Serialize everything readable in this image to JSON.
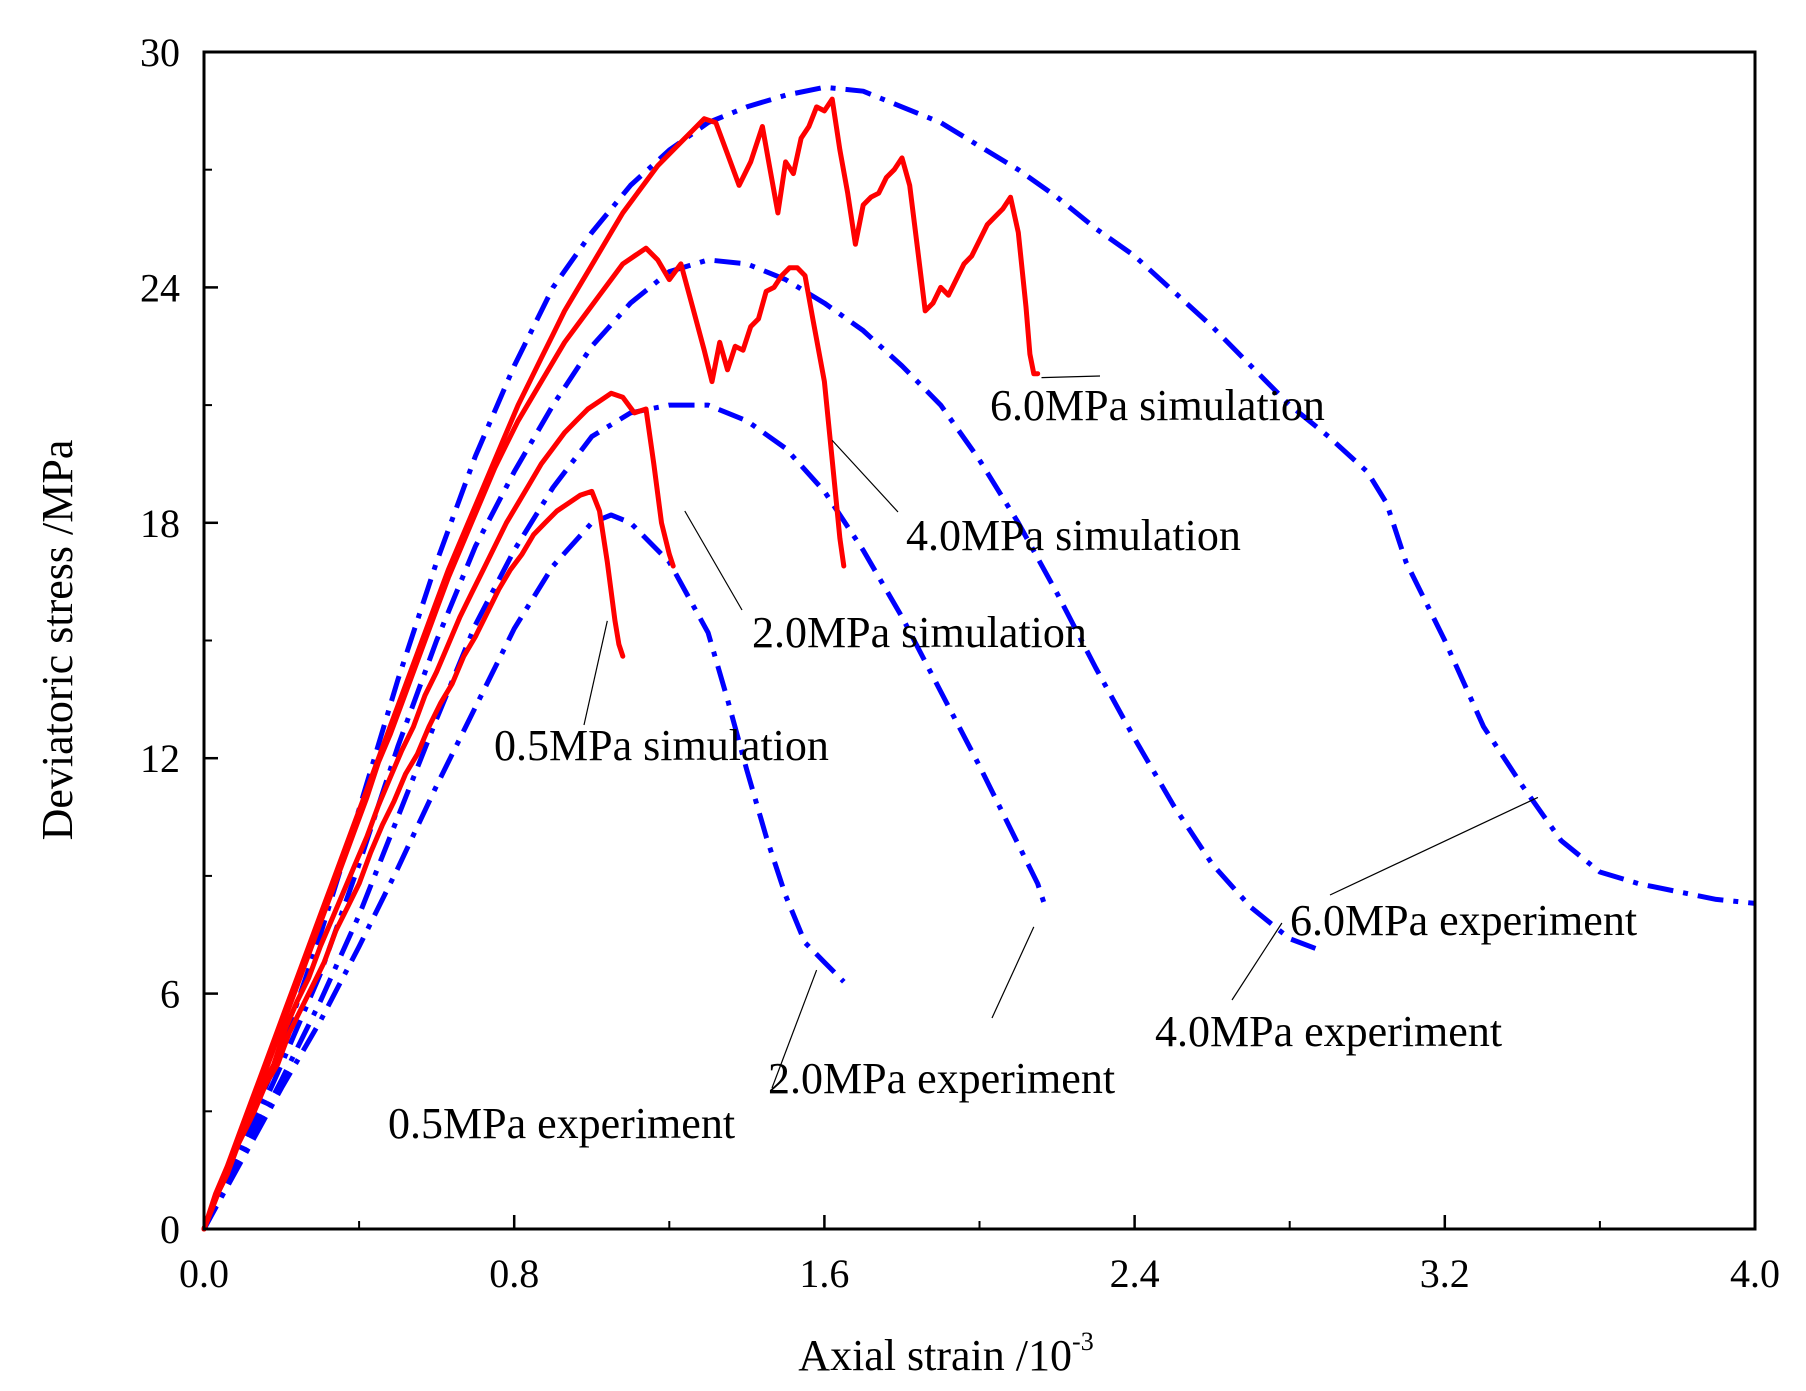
{
  "chart_data": {
    "type": "line",
    "title": "",
    "xlabel": "Axial strain /10",
    "xlabel_sup": "-3",
    "ylabel": "Deviatoric stress /MPa",
    "xlim": [
      0,
      4.0
    ],
    "ylim": [
      0,
      30
    ],
    "x_ticks": [
      "0.0",
      "0.8",
      "1.6",
      "2.4",
      "3.2",
      "4.0"
    ],
    "y_ticks": [
      "0",
      "6",
      "12",
      "18",
      "24",
      "30"
    ],
    "x_tick_values": [
      0,
      0.8,
      1.6,
      2.4,
      3.2,
      4.0
    ],
    "y_tick_values": [
      0,
      6,
      12,
      18,
      24,
      30
    ],
    "colors": {
      "simulation": "#ff0000",
      "experiment": "#0000ff"
    },
    "series": [
      {
        "name": "0.5MPa experiment",
        "kind": "experiment",
        "x": [
          0.0,
          0.1,
          0.2,
          0.3,
          0.4,
          0.5,
          0.6,
          0.7,
          0.8,
          0.9,
          1.0,
          1.05,
          1.1,
          1.2,
          1.3,
          1.35,
          1.4,
          1.45,
          1.5,
          1.55,
          1.6,
          1.65
        ],
        "y": [
          0.0,
          1.8,
          3.6,
          5.3,
          7.2,
          9.2,
          11.3,
          13.3,
          15.3,
          16.9,
          18.0,
          18.2,
          18.0,
          17.0,
          15.2,
          13.5,
          11.7,
          10.0,
          8.5,
          7.3,
          6.8,
          6.3
        ]
      },
      {
        "name": "2.0MPa experiment",
        "kind": "experiment",
        "x": [
          0.0,
          0.1,
          0.2,
          0.3,
          0.4,
          0.5,
          0.6,
          0.7,
          0.8,
          0.9,
          1.0,
          1.1,
          1.2,
          1.3,
          1.4,
          1.5,
          1.6,
          1.7,
          1.8,
          1.9,
          2.0,
          2.1,
          2.15,
          2.17
        ],
        "y": [
          0.0,
          1.9,
          3.8,
          5.8,
          8.0,
          10.5,
          13.0,
          15.4,
          17.3,
          18.9,
          20.2,
          20.8,
          21.0,
          21.0,
          20.6,
          19.9,
          18.8,
          17.3,
          15.6,
          13.7,
          11.8,
          9.8,
          8.8,
          8.2
        ]
      },
      {
        "name": "4.0MPa experiment",
        "kind": "experiment",
        "x": [
          0.0,
          0.1,
          0.2,
          0.3,
          0.4,
          0.5,
          0.6,
          0.7,
          0.8,
          0.9,
          1.0,
          1.1,
          1.2,
          1.3,
          1.4,
          1.5,
          1.6,
          1.7,
          1.8,
          1.9,
          2.0,
          2.1,
          2.2,
          2.3,
          2.4,
          2.5,
          2.6,
          2.7,
          2.8,
          2.88
        ],
        "y": [
          0.0,
          2.0,
          4.2,
          6.5,
          9.3,
          12.3,
          15.0,
          17.4,
          19.3,
          21.0,
          22.5,
          23.6,
          24.4,
          24.7,
          24.6,
          24.2,
          23.6,
          22.9,
          22.0,
          21.0,
          19.6,
          18.0,
          16.2,
          14.3,
          12.5,
          10.8,
          9.3,
          8.2,
          7.4,
          7.1
        ]
      },
      {
        "name": "6.0MPa experiment",
        "kind": "experiment",
        "x": [
          0.0,
          0.1,
          0.2,
          0.3,
          0.4,
          0.5,
          0.6,
          0.7,
          0.8,
          0.9,
          1.0,
          1.1,
          1.2,
          1.3,
          1.4,
          1.5,
          1.6,
          1.7,
          1.8,
          1.9,
          2.0,
          2.1,
          2.2,
          2.3,
          2.4,
          2.5,
          2.6,
          2.7,
          2.8,
          2.9,
          3.0,
          3.05,
          3.1,
          3.2,
          3.3,
          3.4,
          3.5,
          3.6,
          3.7,
          3.8,
          3.9,
          4.0
        ],
        "y": [
          0.0,
          2.2,
          4.6,
          7.5,
          10.7,
          14.0,
          17.0,
          19.7,
          22.0,
          24.0,
          25.4,
          26.6,
          27.5,
          28.2,
          28.6,
          28.9,
          29.1,
          29.0,
          28.6,
          28.2,
          27.6,
          27.0,
          26.3,
          25.5,
          24.8,
          23.9,
          23.0,
          22.0,
          21.0,
          20.2,
          19.3,
          18.5,
          17.0,
          15.0,
          12.8,
          11.3,
          9.9,
          9.1,
          8.8,
          8.6,
          8.4,
          8.3
        ]
      },
      {
        "name": "0.5MPa simulation",
        "kind": "simulation",
        "x": [
          0.0,
          0.02,
          0.04,
          0.06,
          0.08,
          0.1,
          0.13,
          0.16,
          0.19,
          0.22,
          0.25,
          0.28,
          0.31,
          0.34,
          0.37,
          0.4,
          0.43,
          0.46,
          0.49,
          0.52,
          0.55,
          0.58,
          0.61,
          0.64,
          0.67,
          0.7,
          0.73,
          0.76,
          0.79,
          0.82,
          0.85,
          0.88,
          0.91,
          0.94,
          0.97,
          1.0,
          1.02,
          1.04,
          1.06,
          1.07,
          1.08
        ],
        "y": [
          0.0,
          0.5,
          1.0,
          1.4,
          2.0,
          2.4,
          3.0,
          3.7,
          4.2,
          5.0,
          5.6,
          6.2,
          6.8,
          7.6,
          8.2,
          8.8,
          9.6,
          10.3,
          10.9,
          11.6,
          12.1,
          12.8,
          13.4,
          13.9,
          14.6,
          15.1,
          15.7,
          16.3,
          16.8,
          17.2,
          17.7,
          18.0,
          18.3,
          18.5,
          18.7,
          18.8,
          18.3,
          17.0,
          15.5,
          14.9,
          14.6
        ]
      },
      {
        "name": "2.0MPa simulation",
        "kind": "simulation",
        "x": [
          0.0,
          0.03,
          0.06,
          0.09,
          0.12,
          0.15,
          0.18,
          0.21,
          0.24,
          0.27,
          0.3,
          0.33,
          0.36,
          0.39,
          0.42,
          0.45,
          0.48,
          0.51,
          0.54,
          0.57,
          0.6,
          0.63,
          0.66,
          0.69,
          0.72,
          0.75,
          0.78,
          0.81,
          0.84,
          0.87,
          0.9,
          0.93,
          0.96,
          0.99,
          1.02,
          1.05,
          1.08,
          1.11,
          1.14,
          1.16,
          1.18,
          1.2,
          1.21
        ],
        "y": [
          0.0,
          0.8,
          1.4,
          2.2,
          2.8,
          3.6,
          4.2,
          5.1,
          5.8,
          6.4,
          7.2,
          7.9,
          8.6,
          9.3,
          10.0,
          10.8,
          11.5,
          12.2,
          12.8,
          13.6,
          14.2,
          14.9,
          15.6,
          16.2,
          16.8,
          17.4,
          18.0,
          18.5,
          19.0,
          19.5,
          19.9,
          20.3,
          20.6,
          20.9,
          21.1,
          21.3,
          21.2,
          20.8,
          20.9,
          19.5,
          18.0,
          17.2,
          16.9
        ]
      },
      {
        "name": "4.0MPa simulation",
        "kind": "simulation",
        "x": [
          0.0,
          0.03,
          0.06,
          0.09,
          0.12,
          0.15,
          0.18,
          0.21,
          0.24,
          0.27,
          0.3,
          0.33,
          0.36,
          0.39,
          0.42,
          0.45,
          0.48,
          0.51,
          0.54,
          0.57,
          0.6,
          0.63,
          0.66,
          0.69,
          0.72,
          0.75,
          0.78,
          0.81,
          0.84,
          0.87,
          0.9,
          0.93,
          0.96,
          0.99,
          1.02,
          1.05,
          1.08,
          1.11,
          1.14,
          1.17,
          1.2,
          1.23,
          1.26,
          1.29,
          1.31,
          1.33,
          1.35,
          1.37,
          1.39,
          1.41,
          1.43,
          1.45,
          1.47,
          1.49,
          1.51,
          1.53,
          1.55,
          1.57,
          1.6,
          1.62,
          1.64,
          1.65
        ],
        "y": [
          0.0,
          0.8,
          1.5,
          2.3,
          3.0,
          3.8,
          4.6,
          5.4,
          6.2,
          7.0,
          7.8,
          8.6,
          9.4,
          10.2,
          11.0,
          11.9,
          12.6,
          13.4,
          14.2,
          15.0,
          15.8,
          16.6,
          17.3,
          18.0,
          18.7,
          19.4,
          20.0,
          20.6,
          21.1,
          21.6,
          22.1,
          22.6,
          23.0,
          23.4,
          23.8,
          24.2,
          24.6,
          24.8,
          25.0,
          24.7,
          24.2,
          24.6,
          23.5,
          22.4,
          21.6,
          22.6,
          21.9,
          22.5,
          22.4,
          23.0,
          23.2,
          23.9,
          24.0,
          24.3,
          24.5,
          24.5,
          24.3,
          23.2,
          21.6,
          19.6,
          17.6,
          16.9
        ]
      },
      {
        "name": "6.0MPa simulation",
        "kind": "simulation",
        "x": [
          0.0,
          0.03,
          0.06,
          0.09,
          0.12,
          0.15,
          0.18,
          0.21,
          0.24,
          0.27,
          0.3,
          0.33,
          0.36,
          0.39,
          0.42,
          0.45,
          0.48,
          0.51,
          0.54,
          0.57,
          0.6,
          0.63,
          0.66,
          0.69,
          0.72,
          0.75,
          0.78,
          0.81,
          0.84,
          0.87,
          0.9,
          0.93,
          0.96,
          0.99,
          1.02,
          1.05,
          1.08,
          1.11,
          1.14,
          1.17,
          1.2,
          1.23,
          1.26,
          1.29,
          1.32,
          1.35,
          1.38,
          1.41,
          1.44,
          1.46,
          1.48,
          1.5,
          1.52,
          1.54,
          1.56,
          1.58,
          1.6,
          1.62,
          1.64,
          1.66,
          1.68,
          1.7,
          1.72,
          1.74,
          1.76,
          1.78,
          1.8,
          1.82,
          1.84,
          1.86,
          1.88,
          1.9,
          1.92,
          1.94,
          1.96,
          1.98,
          2.0,
          2.02,
          2.04,
          2.06,
          2.08,
          2.1,
          2.12,
          2.13,
          2.14,
          2.15
        ],
        "y": [
          0.0,
          0.9,
          1.6,
          2.4,
          3.2,
          4.0,
          4.8,
          5.6,
          6.4,
          7.2,
          8.0,
          8.8,
          9.6,
          10.4,
          11.2,
          12.0,
          12.8,
          13.6,
          14.4,
          15.2,
          16.0,
          16.8,
          17.5,
          18.2,
          18.9,
          19.6,
          20.3,
          21.0,
          21.6,
          22.2,
          22.8,
          23.4,
          23.9,
          24.4,
          24.9,
          25.4,
          25.9,
          26.3,
          26.7,
          27.1,
          27.4,
          27.7,
          28.0,
          28.3,
          28.2,
          27.4,
          26.6,
          27.2,
          28.1,
          27.0,
          25.9,
          27.2,
          26.9,
          27.8,
          28.1,
          28.6,
          28.5,
          28.8,
          27.5,
          26.4,
          25.1,
          26.1,
          26.3,
          26.4,
          26.8,
          27.0,
          27.3,
          26.6,
          25.0,
          23.4,
          23.6,
          24.0,
          23.8,
          24.2,
          24.6,
          24.8,
          25.2,
          25.6,
          25.8,
          26.0,
          26.3,
          25.4,
          23.5,
          22.3,
          21.8,
          21.8
        ]
      }
    ],
    "annotations": [
      {
        "text": "6.0MPa simulation",
        "series": "6.0MPa simulation"
      },
      {
        "text": "4.0MPa simulation",
        "series": "4.0MPa simulation"
      },
      {
        "text": "2.0MPa simulation",
        "series": "2.0MPa simulation"
      },
      {
        "text": "0.5MPa simulation",
        "series": "0.5MPa simulation"
      },
      {
        "text": "6.0MPa experiment",
        "series": "6.0MPa experiment"
      },
      {
        "text": "4.0MPa experiment",
        "series": "4.0MPa experiment"
      },
      {
        "text": "2.0MPa experiment",
        "series": "2.0MPa experiment"
      },
      {
        "text": "0.5MPa experiment",
        "series": "0.5MPa experiment"
      }
    ],
    "grid": false,
    "legend": "none"
  }
}
